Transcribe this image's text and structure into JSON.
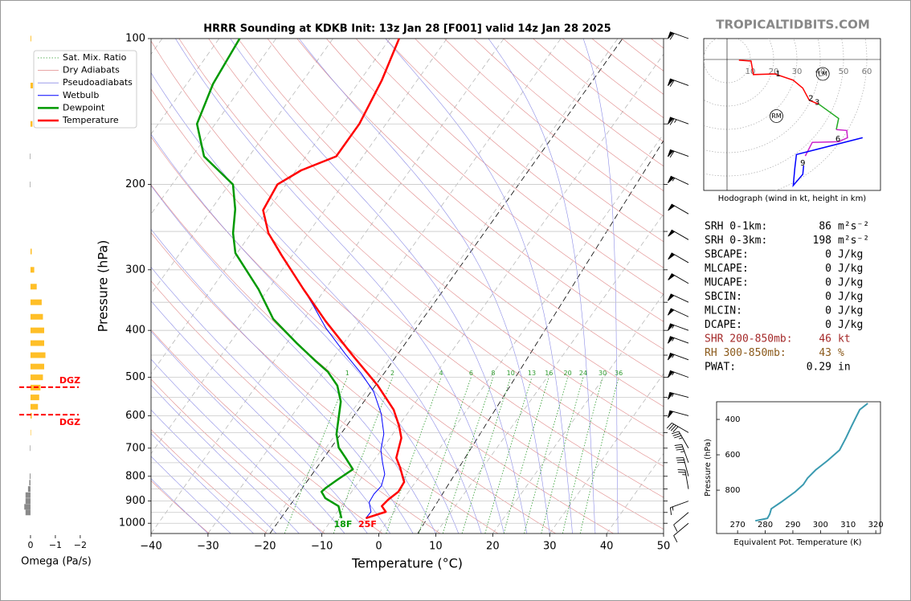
{
  "watermark": "TROPICALTIDBITS.COM",
  "chart_data": [
    {
      "type": "skewt",
      "title": "HRRR Sounding at KDKB Init: 13z Jan 28 [F001] valid 14z Jan 28 2025",
      "xlabel": "Temperature (°C)",
      "ylabel": "Pressure (hPa)",
      "xlim": [
        -40,
        50
      ],
      "ylim": [
        1050,
        100
      ],
      "log_y": true,
      "xticks": [
        {
          "value": -40,
          "label": "−40"
        },
        {
          "value": -30,
          "label": "−30"
        },
        {
          "value": -20,
          "label": "−20"
        },
        {
          "value": -10,
          "label": "−10"
        },
        0,
        10,
        20,
        30,
        40,
        50
      ],
      "yticks": [
        100,
        200,
        300,
        400,
        500,
        600,
        700,
        800,
        900,
        1000
      ],
      "pressure_grid": [
        100,
        150,
        200,
        250,
        300,
        350,
        400,
        450,
        500,
        550,
        600,
        650,
        700,
        750,
        800,
        850,
        900,
        950,
        1000
      ],
      "grid": true,
      "legend": "upper left",
      "reference_lines": [
        {
          "name": "Sat. Mix. Ratio",
          "color": "#2e9b2e",
          "style": "dotted",
          "values": [
            1,
            2,
            4,
            6,
            8,
            10,
            13,
            16,
            20,
            24,
            30,
            36
          ]
        },
        {
          "name": "Dry Adiabats",
          "color": "#e08888",
          "style": "solid"
        },
        {
          "name": "Pseudoadiabats",
          "color": "#8c8ce6",
          "style": "solid"
        }
      ],
      "series": [
        {
          "name": "Wetbulb",
          "color": "#0000ff",
          "pressure": [
            976,
            947,
            905,
            871,
            838,
            792,
            748,
            706,
            654,
            594,
            536,
            491,
            447,
            395,
            355,
            329
          ],
          "values": [
            -4.2,
            -4.1,
            -5.6,
            -5.8,
            -5.5,
            -6.4,
            -8.3,
            -10.1,
            -11.6,
            -14.6,
            -18.6,
            -23.1,
            -28.4,
            -35.1,
            -40.1,
            -43.8
          ]
        },
        {
          "name": "Dewpoint",
          "color": "#009900",
          "surface_label": "18F",
          "pressure": [
            976,
            922,
            888,
            861,
            845,
            813,
            774,
            733,
            698,
            654,
            561,
            520,
            487,
            464,
            426,
            379,
            329,
            277,
            252,
            225,
            200,
            175,
            150,
            124,
            100
          ],
          "values": [
            -8.5,
            -10.5,
            -13.8,
            -15.3,
            -15.0,
            -14.0,
            -12.6,
            -15.3,
            -17.8,
            -19.9,
            -23.2,
            -25.8,
            -29.2,
            -32.5,
            -38.1,
            -45.4,
            -51.7,
            -60.3,
            -63.2,
            -65.8,
            -69.3,
            -77.9,
            -83.2,
            -85.4,
            -86.4
          ]
        },
        {
          "name": "Temperature",
          "color": "#ff0000",
          "surface_label": "25F",
          "pressure": [
            976,
            947,
            922,
            894,
            861,
            822,
            768,
            733,
            667,
            630,
            583,
            520,
            452,
            383,
            329,
            280,
            252,
            226,
            200,
            187,
            175,
            150,
            122,
            100
          ],
          "values": [
            -4.2,
            -1.5,
            -2.9,
            -2.6,
            -1.8,
            -2.0,
            -4.5,
            -6.4,
            -8.0,
            -9.9,
            -12.9,
            -18.7,
            -26.7,
            -35.9,
            -43.8,
            -51.9,
            -57.0,
            -60.8,
            -61.5,
            -59.1,
            -54.7,
            -54.7,
            -56.2,
            -58.4
          ]
        }
      ],
      "winds": {
        "pressure": [
          100,
          125,
          150,
          175,
          200,
          230,
          260,
          290,
          320,
          350,
          375,
          400,
          425,
          460,
          500,
          550,
          600,
          650,
          700,
          750,
          800,
          850,
          900,
          950,
          1000
        ],
        "speed": [
          60,
          60,
          65,
          60,
          55,
          50,
          50,
          50,
          50,
          50,
          50,
          55,
          55,
          55,
          55,
          55,
          50,
          40,
          35,
          35,
          30,
          25,
          15,
          10,
          10
        ],
        "direction": [
          290,
          290,
          290,
          290,
          295,
          300,
          300,
          300,
          300,
          295,
          295,
          290,
          290,
          290,
          290,
          285,
          285,
          300,
          330,
          340,
          345,
          350,
          250,
          230,
          230
        ]
      }
    },
    {
      "type": "omega_bar",
      "xlabel": "Omega (Pa/s)",
      "xlim": [
        1.2,
        -2.1
      ],
      "ylim": [
        1050,
        100
      ],
      "xticks": [
        0,
        {
          "value": -1,
          "label": "−1"
        },
        {
          "value": -2,
          "label": "−2"
        }
      ],
      "color": "#ffbf27",
      "positive_color": "#8a8a8a",
      "pressure": [
        100,
        125,
        150,
        175,
        200,
        275,
        300,
        325,
        350,
        375,
        400,
        425,
        450,
        475,
        500,
        525,
        550,
        575,
        600,
        650,
        700,
        800,
        825,
        850,
        875,
        900,
        925,
        950
      ],
      "values": [
        -0.03,
        -0.1,
        -0.08,
        0.02,
        0.02,
        -0.05,
        -0.15,
        -0.25,
        -0.45,
        -0.5,
        -0.55,
        -0.55,
        -0.6,
        -0.55,
        -0.5,
        -0.4,
        -0.35,
        -0.3,
        -0.05,
        -0.02,
        0.02,
        0.03,
        0.05,
        0.1,
        0.2,
        0.2,
        0.25,
        0.2
      ],
      "dgz_color": "#ff0000",
      "dgz": [
        {
          "pressure": 524,
          "label": "DGZ"
        },
        {
          "pressure": 597,
          "label": "DGZ"
        }
      ]
    },
    {
      "type": "hodograph",
      "caption": "Hodograph (wind in kt, height in km)",
      "rings": [
        10,
        20,
        30,
        40,
        50,
        60
      ],
      "segments": [
        {
          "color": "#ff0000",
          "u": [
            5.1,
            10.3,
            11.3,
            20.5,
            28.4,
            32.5,
            35.3,
            39.4
          ],
          "v": [
            -0.3,
            -0.7,
            -6.5,
            -6.2,
            -8.9,
            -12.3,
            -17.5,
            -19.2
          ]
        },
        {
          "color": "#22aa22",
          "u": [
            39.4,
            47.9,
            46.9
          ],
          "v": [
            -19.2,
            -25.3,
            -30.1
          ]
        },
        {
          "color": "#cc22cc",
          "u": [
            46.9,
            51.4,
            51.7,
            47.9,
            36.6,
            33.6
          ],
          "v": [
            -30.1,
            -30.5,
            -33.6,
            -35.3,
            -35.6,
            -41.4
          ]
        },
        {
          "color": "#0000ff",
          "u": [
            58.2,
            29.8,
            29.1,
            28.4,
            32.5,
            32.9
          ],
          "v": [
            -33.6,
            -40.8,
            -46.6,
            -54.1,
            -49.3,
            -45.5
          ]
        }
      ],
      "height_labels": [
        {
          "height": 1,
          "u": 21.9,
          "v": -6.2
        },
        {
          "height": 2,
          "u": 36.0,
          "v": -16.8
        },
        {
          "height": 3,
          "u": 38.7,
          "v": -18.5
        },
        {
          "height": 6,
          "u": 47.6,
          "v": -34.2
        },
        {
          "height": 9,
          "u": 32.5,
          "v": -44.5
        }
      ],
      "storm_motion": [
        {
          "label": "LM",
          "u": 41.1,
          "v": -6.2
        },
        {
          "label": "RM",
          "u": 21.2,
          "v": -24.3
        }
      ]
    },
    {
      "type": "line",
      "xlabel": "Equivalent Pot. Temperature (K)",
      "ylabel": "Pressure (hPa)",
      "xlim": [
        262.4,
        321.7
      ],
      "ylim": [
        1045,
        300
      ],
      "xticks": [
        270,
        280,
        290,
        300,
        310,
        320
      ],
      "yticks": [
        400,
        600,
        800
      ],
      "color": "#3a9ab0",
      "values": [
        276.4,
        280.8,
        281.6,
        282.2,
        285.7,
        290.9,
        293.8,
        295.3,
        298.2,
        302.6,
        306.9,
        309.2,
        311.3,
        313.0,
        314.2,
        317.1
      ],
      "pressure": [
        973,
        959,
        936,
        905,
        868,
        809,
        768,
        732,
        686,
        632,
        573,
        505,
        436,
        382,
        345,
        309
      ]
    }
  ],
  "indices": [
    {
      "label": "SRH 0-1km:",
      "value": 86,
      "unit": "m²s⁻²"
    },
    {
      "label": "SRH 0-3km:",
      "value": 198,
      "unit": "m²s⁻²"
    },
    {
      "label": "SBCAPE:",
      "value": 0,
      "unit": "J/kg"
    },
    {
      "label": "MLCAPE:",
      "value": 0,
      "unit": "J/kg"
    },
    {
      "label": "MUCAPE:",
      "value": 0,
      "unit": "J/kg"
    },
    {
      "label": "SBCIN:",
      "value": 0,
      "unit": "J/kg"
    },
    {
      "label": "MLCIN:",
      "value": 0,
      "unit": "J/kg"
    },
    {
      "label": "DCAPE:",
      "value": 0,
      "unit": "J/kg"
    },
    {
      "label": "SHR 200-850mb:",
      "value": 46,
      "unit": "kt",
      "color": "#a52a2a"
    },
    {
      "label": "RH 300-850mb:",
      "value": 43,
      "unit": "%",
      "color": "#8b5a1b"
    },
    {
      "label": "PWAT:",
      "value": 0.29,
      "unit": "in"
    }
  ]
}
